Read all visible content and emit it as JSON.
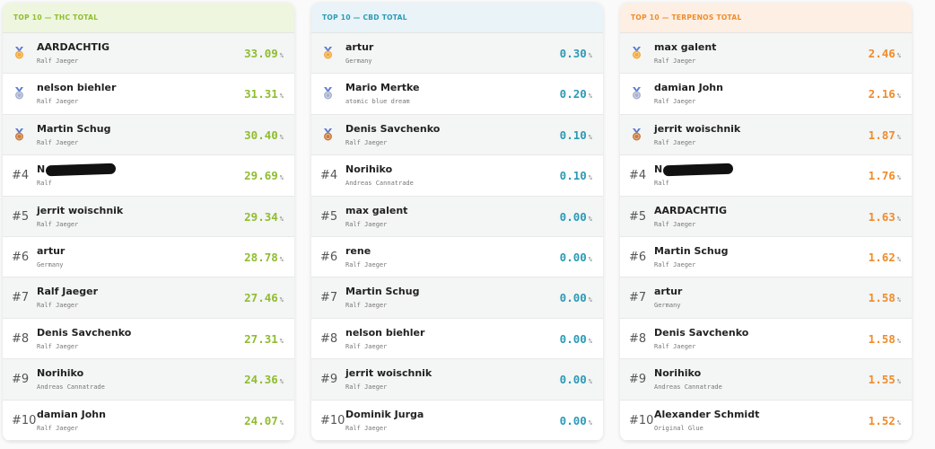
{
  "panels": [
    {
      "title": "TOP 10 — THC TOTAL",
      "unit": "%",
      "accent": "#8fbd2f",
      "header_bg": "#eef6df",
      "rows": [
        {
          "medal": "gold",
          "name": "AARDACHTIG",
          "subtitle": "Ralf Jaeger",
          "value": "33.09"
        },
        {
          "medal": "silver",
          "name": "nelson biehler",
          "subtitle": "Ralf Jaeger",
          "value": "31.31"
        },
        {
          "medal": "bronze",
          "name": "Martin Schug",
          "subtitle": "Ralf Jaeger",
          "value": "30.40"
        },
        {
          "rank": "#4",
          "name": "N",
          "subtitle": "Ralf",
          "value": "29.69",
          "redacted": true
        },
        {
          "rank": "#5",
          "name": "jerrit woischnik",
          "subtitle": "Ralf Jaeger",
          "value": "29.34"
        },
        {
          "rank": "#6",
          "name": "artur",
          "subtitle": "Germany",
          "value": "28.78"
        },
        {
          "rank": "#7",
          "name": "Ralf Jaeger",
          "subtitle": "Ralf Jaeger",
          "value": "27.46"
        },
        {
          "rank": "#8",
          "name": "Denis Savchenko",
          "subtitle": "Ralf Jaeger",
          "value": "27.31"
        },
        {
          "rank": "#9",
          "name": "Norihiko",
          "subtitle": "Andreas Cannatrade",
          "value": "24.36"
        },
        {
          "rank": "#10",
          "name": "damian John",
          "subtitle": "Ralf Jaeger",
          "value": "24.07"
        }
      ]
    },
    {
      "title": "TOP 10 — CBD TOTAL",
      "unit": "%",
      "accent": "#2a9bb5",
      "header_bg": "#e9f3f8",
      "rows": [
        {
          "medal": "gold",
          "name": "artur",
          "subtitle": "Germany",
          "value": "0.30"
        },
        {
          "medal": "silver",
          "name": "Mario Mertke",
          "subtitle": "atomic blue dream",
          "value": "0.20"
        },
        {
          "medal": "bronze",
          "name": "Denis Savchenko",
          "subtitle": "Ralf Jaeger",
          "value": "0.10"
        },
        {
          "rank": "#4",
          "name": "Norihiko",
          "subtitle": "Andreas Cannatrade",
          "value": "0.10"
        },
        {
          "rank": "#5",
          "name": "max galent",
          "subtitle": "Ralf Jaeger",
          "value": "0.00"
        },
        {
          "rank": "#6",
          "name": "rene",
          "subtitle": "Ralf Jaeger",
          "value": "0.00"
        },
        {
          "rank": "#7",
          "name": "Martin Schug",
          "subtitle": "Ralf Jaeger",
          "value": "0.00"
        },
        {
          "rank": "#8",
          "name": "nelson biehler",
          "subtitle": "Ralf Jaeger",
          "value": "0.00"
        },
        {
          "rank": "#9",
          "name": "jerrit woischnik",
          "subtitle": "Ralf Jaeger",
          "value": "0.00"
        },
        {
          "rank": "#10",
          "name": "Dominik Jurga",
          "subtitle": "Ralf Jaeger",
          "value": "0.00"
        }
      ]
    },
    {
      "title": "TOP 10 — TERPENOS TOTAL",
      "unit": "%",
      "accent": "#f08c2a",
      "header_bg": "#fdefe4",
      "rows": [
        {
          "medal": "gold",
          "name": "max galent",
          "subtitle": "Ralf Jaeger",
          "value": "2.46"
        },
        {
          "medal": "silver",
          "name": "damian John",
          "subtitle": "Ralf Jaeger",
          "value": "2.16"
        },
        {
          "medal": "bronze",
          "name": "jerrit woischnik",
          "subtitle": "Ralf Jaeger",
          "value": "1.87"
        },
        {
          "rank": "#4",
          "name": "N",
          "subtitle": "Ralf",
          "value": "1.76",
          "redacted": true
        },
        {
          "rank": "#5",
          "name": "AARDACHTIG",
          "subtitle": "Ralf Jaeger",
          "value": "1.63"
        },
        {
          "rank": "#6",
          "name": "Martin Schug",
          "subtitle": "Ralf Jaeger",
          "value": "1.62"
        },
        {
          "rank": "#7",
          "name": "artur",
          "subtitle": "Germany",
          "value": "1.58"
        },
        {
          "rank": "#8",
          "name": "Denis Savchenko",
          "subtitle": "Ralf Jaeger",
          "value": "1.58"
        },
        {
          "rank": "#9",
          "name": "Norihiko",
          "subtitle": "Andreas Cannatrade",
          "value": "1.55"
        },
        {
          "rank": "#10",
          "name": "Alexander Schmidt",
          "subtitle": "Original Glue",
          "value": "1.52"
        }
      ]
    }
  ]
}
